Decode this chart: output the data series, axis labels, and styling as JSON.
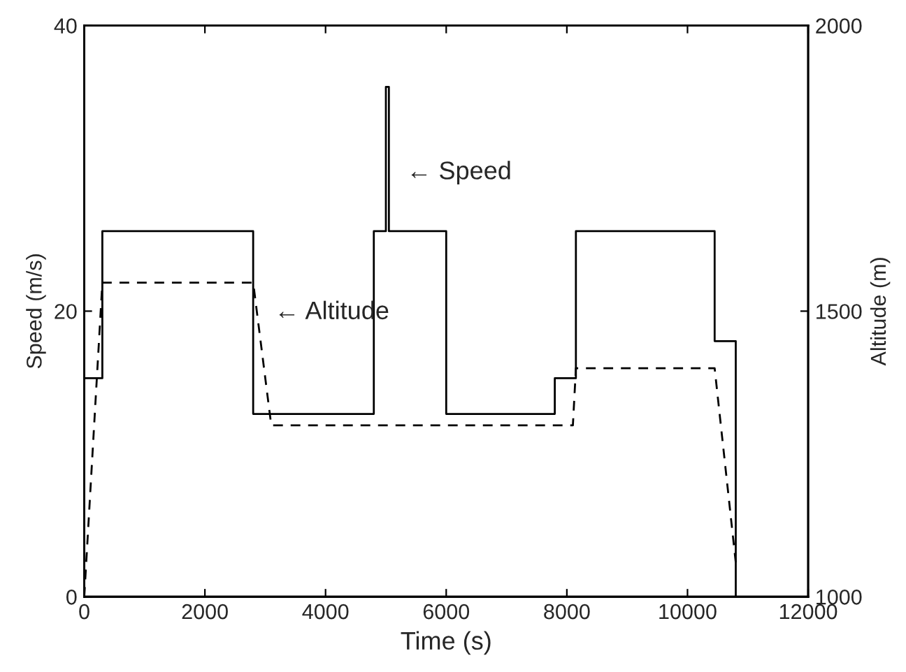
{
  "chart_data": {
    "type": "line",
    "xlabel": "Time (s)",
    "ylabel": "Speed (m/s)",
    "y2label": "Altitude (m)",
    "xlim": [
      0,
      12000
    ],
    "xticks": [
      0,
      2000,
      4000,
      6000,
      8000,
      10000,
      12000
    ],
    "ylim": [
      0,
      40
    ],
    "yticks": [
      0,
      20,
      40
    ],
    "y2lim": [
      1000,
      2000
    ],
    "y2ticks": [
      1000,
      1500,
      2000
    ],
    "grid": false,
    "legend": false,
    "marker": "none",
    "series": [
      {
        "color": "#000000",
        "line_style": "solid",
        "x": [
          0,
          0,
          300,
          300,
          2800,
          2800,
          4800,
          4800,
          5000,
          5000,
          5050,
          5050,
          6000,
          6000,
          7800,
          7800,
          8150,
          8150,
          10450,
          10450,
          10800,
          10800
        ],
        "values": [
          0,
          15.3,
          15.3,
          25.6,
          25.6,
          12.8,
          12.8,
          25.6,
          25.6,
          35.7,
          35.7,
          25.6,
          25.6,
          12.8,
          12.8,
          15.3,
          15.3,
          25.6,
          25.6,
          17.9,
          17.9,
          0
        ]
      },
      {
        "color": "#000000",
        "line_style": "dashed",
        "axis": "y2",
        "x": [
          0,
          300,
          2800,
          3100,
          8100,
          8150,
          10450,
          10800
        ],
        "values": [
          1000,
          1550,
          1550,
          1300,
          1300,
          1400,
          1400,
          1060
        ]
      }
    ],
    "annotations": [
      {
        "text": "← Speed",
        "x": 5050,
        "y": 29.7
      },
      {
        "text": "← Altitude",
        "x": 2860,
        "y": 19.9
      }
    ]
  }
}
